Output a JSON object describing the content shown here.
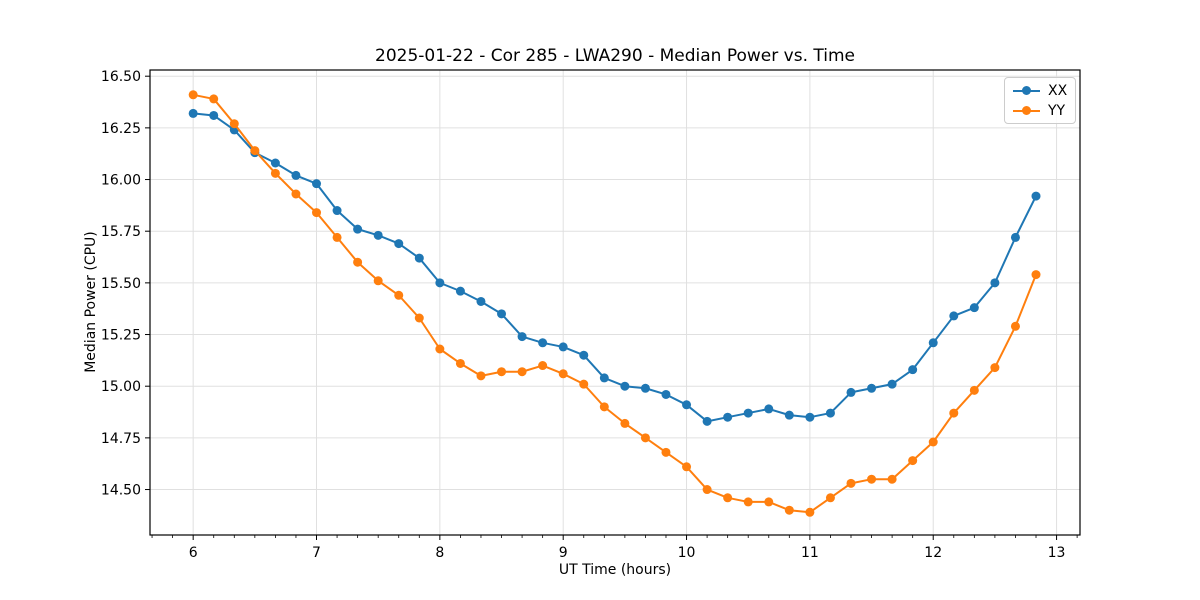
{
  "chart_data": {
    "type": "line",
    "title": "2025-01-22 - Cor 285 - LWA290 - Median Power vs. Time",
    "xlabel": "UT Time (hours)",
    "ylabel": "Median Power (CPU)",
    "xlim": [
      5.65,
      13.19
    ],
    "ylim": [
      14.28,
      16.53
    ],
    "x_ticks": [
      6,
      7,
      8,
      9,
      10,
      11,
      12,
      13
    ],
    "x_tick_labels": [
      "6",
      "7",
      "8",
      "9",
      "10",
      "11",
      "12",
      "13"
    ],
    "y_ticks": [
      14.5,
      14.75,
      15.0,
      15.25,
      15.5,
      15.75,
      16.0,
      16.25,
      16.5
    ],
    "y_tick_labels": [
      "14.50",
      "14.75",
      "15.00",
      "15.25",
      "15.50",
      "15.75",
      "16.00",
      "16.25",
      "16.50"
    ],
    "x_minor_step": 0.1666667,
    "grid": true,
    "grid_color": "#e0e0e0",
    "legend_position": "upper right",
    "x": [
      6.0,
      6.1667,
      6.3333,
      6.5,
      6.6667,
      6.8333,
      7.0,
      7.1667,
      7.3333,
      7.5,
      7.6667,
      7.8333,
      8.0,
      8.1667,
      8.3333,
      8.5,
      8.6667,
      8.8333,
      9.0,
      9.1667,
      9.3333,
      9.5,
      9.6667,
      9.8333,
      10.0,
      10.1667,
      10.3333,
      10.5,
      10.6667,
      10.8333,
      11.0,
      11.1667,
      11.3333,
      11.5,
      11.6667,
      11.8333,
      12.0,
      12.1667,
      12.3333,
      12.5,
      12.6667,
      12.8333
    ],
    "series": [
      {
        "name": "XX",
        "color": "#1f77b4",
        "values": [
          16.32,
          16.31,
          16.24,
          16.13,
          16.08,
          16.02,
          15.98,
          15.85,
          15.76,
          15.73,
          15.69,
          15.62,
          15.5,
          15.46,
          15.41,
          15.35,
          15.24,
          15.21,
          15.19,
          15.15,
          15.04,
          15.0,
          14.99,
          14.96,
          14.91,
          14.83,
          14.85,
          14.87,
          14.89,
          14.86,
          14.85,
          14.87,
          14.97,
          14.99,
          15.01,
          15.08,
          15.21,
          15.34,
          15.38,
          15.5,
          15.72,
          15.92
        ]
      },
      {
        "name": "YY",
        "color": "#ff7f0e",
        "values": [
          16.41,
          16.39,
          16.27,
          16.14,
          16.03,
          15.93,
          15.84,
          15.72,
          15.6,
          15.51,
          15.44,
          15.33,
          15.18,
          15.11,
          15.05,
          15.07,
          15.07,
          15.1,
          15.06,
          15.01,
          14.9,
          14.82,
          14.75,
          14.68,
          14.61,
          14.5,
          14.46,
          14.44,
          14.44,
          14.4,
          14.39,
          14.46,
          14.53,
          14.55,
          14.55,
          14.64,
          14.73,
          14.87,
          14.98,
          15.09,
          15.29,
          15.54
        ]
      }
    ]
  }
}
